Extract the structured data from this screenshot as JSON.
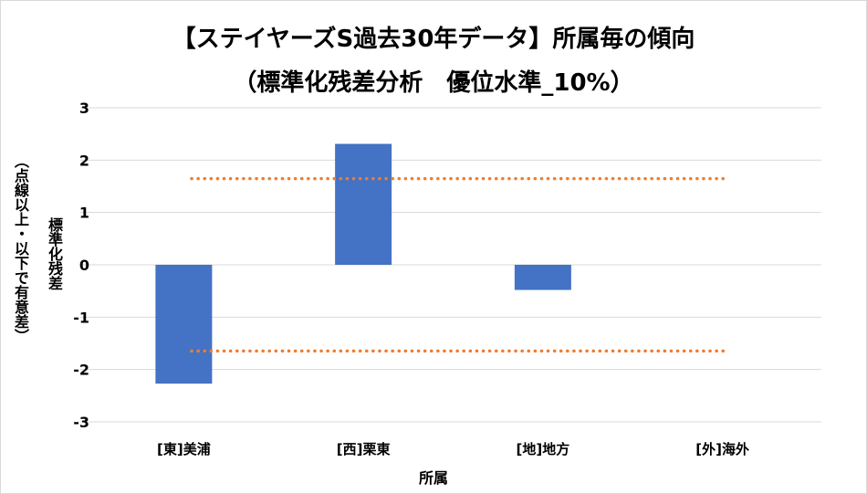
{
  "chart_data": {
    "type": "bar",
    "title": "【ステイヤーズS過去30年データ】所属毎の傾向",
    "subtitle": "（標準化残差分析　優位水準_10%）",
    "xlabel": "所属",
    "ylabel": "標準化残差",
    "ylabel_note": "（点線以上・以下で有意差）",
    "categories": [
      "[東]美浦",
      "[西]栗東",
      "[地]地方",
      "[外]海外"
    ],
    "values": [
      -2.27,
      2.31,
      -0.48,
      0
    ],
    "ylim": [
      -3,
      3
    ],
    "yticks": [
      "3",
      "2",
      "1",
      "0",
      "-1",
      "-2",
      "-3"
    ],
    "thresholds": [
      1.645,
      -1.645
    ],
    "grid": true,
    "bar_color": "#4472c4",
    "threshold_color": "#ed7d31"
  }
}
